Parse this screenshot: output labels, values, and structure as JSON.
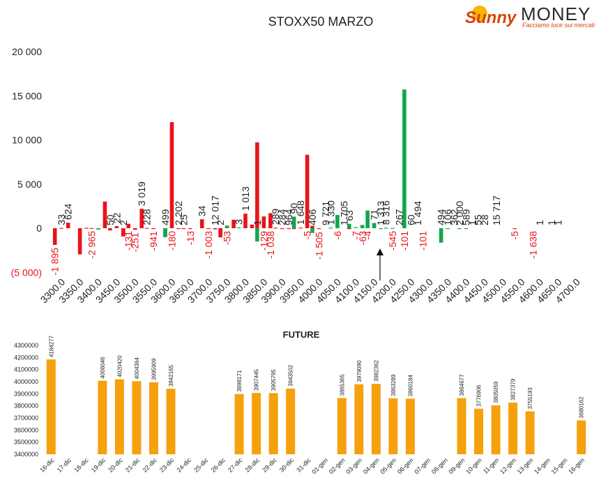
{
  "logo": {
    "word1": "Sunny",
    "word2": "MONEY",
    "tagline": "Facciamo luce sui mercati"
  },
  "colors": {
    "red": "#e8141b",
    "green": "#10a84e",
    "orange": "#f5a10e",
    "text": "#222222",
    "axis_neg": "#e8141b"
  },
  "chart_data": [
    {
      "type": "bar",
      "title": "STOXX50 MARZO",
      "ylim": [
        -5000,
        20000
      ],
      "yticks": [
        20000,
        15000,
        10000,
        5000,
        0,
        -5000
      ],
      "ytick_labels": [
        "20 000",
        "15 000",
        "10 000",
        "5 000",
        "0",
        "(5 000)"
      ],
      "categories": [
        "3300.0",
        "3350.0",
        "3400.0",
        "3450.0",
        "3500.0",
        "3550.0",
        "3600.0",
        "3650.0",
        "3700.0",
        "3750.0",
        "3800.0",
        "3850.0",
        "3900.0",
        "3950.0",
        "4000.0",
        "4050.0",
        "4100.0",
        "4150.0",
        "4200.0",
        "4250.0",
        "4300.0",
        "4350.0",
        "4400.0",
        "4450.0",
        "4500.0",
        "4550.0",
        "4600.0",
        "4650.0",
        "4700.0"
      ],
      "series": [
        {
          "color": "red",
          "values": [
            [
              -1895,
              33,
              624
            ],
            [
              null,
              -2965,
              50
            ],
            [
              22,
              -131,
              3019
            ],
            [
              -251,
              228,
              -941
            ],
            [
              499,
              -180,
              2202
            ],
            [
              25,
              -13,
              null
            ],
            [
              -1003,
              12017,
              2
            ],
            [
              -53,
              3,
              null
            ],
            [
              1013,
              1,
              -129
            ],
            [
              -1038,
              289,
              964
            ],
            [
              null,
              1648,
              406
            ],
            [
              9721,
              1330,
              1705
            ],
            [
              63,
              -7,
              -63
            ],
            [
              -4,
              71,
              8316
            ],
            [
              267,
              -101,
              null
            ],
            [
              null,
              null,
              null
            ],
            [
              -101,
              null,
              null
            ],
            [
              null,
              null,
              null
            ],
            [
              null,
              null,
              null
            ],
            [
              null,
              null,
              null
            ],
            [
              null,
              null,
              null
            ],
            [
              null,
              null,
              null
            ],
            [
              null,
              null,
              null
            ],
            [
              null,
              null,
              null
            ],
            [
              null,
              null,
              null
            ],
            [
              -5,
              null,
              null
            ],
            [
              null,
              null,
              null
            ],
            [
              null,
              null,
              null
            ],
            [
              null,
              null,
              null
            ]
          ]
        },
        {
          "color": "green",
          "values": [
            [
              null,
              null,
              null
            ],
            [
              null,
              null,
              null
            ],
            [
              null,
              -137,
              null
            ],
            [
              null,
              null,
              null
            ],
            [
              null,
              null,
              null
            ],
            [
              null,
              null,
              null
            ],
            [
              -1003,
              null,
              null
            ],
            [
              null,
              null,
              null
            ],
            [
              null,
              null,
              null
            ],
            [
              null,
              284,
              null
            ],
            [
              90,
              null,
              null
            ],
            [
              -1505,
              null,
              null
            ],
            [
              null,
              null,
              null
            ],
            [
              1313,
              null,
              null
            ],
            [
              -545,
              null,
              null
            ],
            [
              60,
              1494,
              null
            ],
            [
              494,
              106,
              362
            ],
            [
              2000,
              589,
              1
            ],
            [
              55,
              28,
              null
            ],
            [
              15717,
              null,
              null
            ],
            [
              null,
              null,
              null
            ],
            [
              -1638,
              1,
              null
            ],
            [
              1,
              1,
              null
            ],
            [
              null,
              null,
              null
            ],
            [
              null,
              null,
              null
            ],
            [
              null,
              null,
              null
            ],
            [
              null,
              null,
              null
            ],
            [
              null,
              null,
              null
            ],
            [
              null,
              null,
              null
            ]
          ]
        }
      ],
      "labels": [
        {
          "i": 0,
          "o": 0,
          "v": "-1 895",
          "c": "red"
        },
        {
          "i": 0,
          "o": 1,
          "v": "33",
          "c": "text"
        },
        {
          "i": 0,
          "o": 2,
          "v": "624",
          "c": "text"
        },
        {
          "i": 2,
          "o": 0,
          "v": "-2 965",
          "c": "red"
        },
        {
          "i": 3,
          "o": 0,
          "v": "50",
          "c": "text"
        },
        {
          "i": 3,
          "o": 1,
          "v": "22",
          "c": "text"
        },
        {
          "i": 3,
          "o": 2,
          "v": "2",
          "c": "text"
        },
        {
          "i": 4,
          "o": 0,
          "v": "-131",
          "c": "red"
        },
        {
          "i": 4,
          "o": 1,
          "v": "-251",
          "c": "red"
        },
        {
          "i": 4,
          "o": 2,
          "v": "3 019",
          "c": "text"
        },
        {
          "i": 5,
          "o": 0,
          "v": "228",
          "c": "text"
        },
        {
          "i": 5,
          "o": 1,
          "v": "-941",
          "c": "red"
        },
        {
          "i": 6,
          "o": 0,
          "v": "499",
          "c": "text"
        },
        {
          "i": 6,
          "o": 1,
          "v": "-180",
          "c": "red"
        },
        {
          "i": 6,
          "o": 2,
          "v": "2 202",
          "c": "text"
        },
        {
          "i": 7,
          "o": 0,
          "v": "25",
          "c": "text"
        },
        {
          "i": 7,
          "o": 1,
          "v": "-13",
          "c": "red"
        },
        {
          "i": 8,
          "o": 0,
          "v": "34",
          "c": "text"
        },
        {
          "i": 8,
          "o": 1,
          "v": "-1 003",
          "c": "red"
        },
        {
          "i": 8,
          "o": 2,
          "v": "12 017",
          "c": "text"
        },
        {
          "i": 9,
          "o": 0,
          "v": "2",
          "c": "text"
        },
        {
          "i": 9,
          "o": 1,
          "v": "-53",
          "c": "red"
        },
        {
          "i": 10,
          "o": 0,
          "v": "3",
          "c": "text"
        },
        {
          "i": 10,
          "o": 1,
          "v": "1 013",
          "c": "text"
        },
        {
          "i": 11,
          "o": 0,
          "v": "1",
          "c": "text"
        },
        {
          "i": 11,
          "o": 1,
          "v": "-129",
          "c": "red"
        },
        {
          "i": 11,
          "o": 2,
          "v": "-1 038",
          "c": "red"
        },
        {
          "i": 12,
          "o": 0,
          "v": "289",
          "c": "text"
        },
        {
          "i": 12,
          "o": 1,
          "v": "284",
          "c": "text"
        },
        {
          "i": 12,
          "o": 2,
          "v": "964",
          "c": "text"
        },
        {
          "i": 13,
          "o": 0,
          "v": "90",
          "c": "text"
        },
        {
          "i": 13,
          "o": 1,
          "v": "1 648",
          "c": "text"
        },
        {
          "i": 13,
          "o": 2,
          "v": "-5",
          "c": "red"
        },
        {
          "i": 14,
          "o": 0,
          "v": "406",
          "c": "text"
        },
        {
          "i": 14,
          "o": 1,
          "v": "-1 505",
          "c": "red"
        },
        {
          "i": 14,
          "o": 2,
          "v": "9 721",
          "c": "text"
        },
        {
          "i": 15,
          "o": 0,
          "v": "1 330",
          "c": "text"
        },
        {
          "i": 15,
          "o": 1,
          "v": "-6",
          "c": "red"
        },
        {
          "i": 15,
          "o": 2,
          "v": "1 705",
          "c": "text"
        },
        {
          "i": 16,
          "o": 0,
          "v": "63",
          "c": "text"
        },
        {
          "i": 16,
          "o": 1,
          "v": "-7",
          "c": "red"
        },
        {
          "i": 16,
          "o": 2,
          "v": "-63",
          "c": "red"
        },
        {
          "i": 17,
          "o": 0,
          "v": "-4",
          "c": "red"
        },
        {
          "i": 17,
          "o": 1,
          "v": "71",
          "c": "text"
        },
        {
          "i": 17,
          "o": 2,
          "v": "1 313",
          "c": "text"
        },
        {
          "i": 18,
          "o": 0,
          "v": "8 316",
          "c": "text"
        },
        {
          "i": 18,
          "o": 1,
          "v": "-545",
          "c": "red"
        },
        {
          "i": 18,
          "o": 2,
          "v": "267",
          "c": "text"
        },
        {
          "i": 19,
          "o": 0,
          "v": "-101",
          "c": "red"
        },
        {
          "i": 19,
          "o": 1,
          "v": "60",
          "c": "text"
        },
        {
          "i": 19,
          "o": 2,
          "v": "1 494",
          "c": "text"
        },
        {
          "i": 20,
          "o": 0,
          "v": "-101",
          "c": "red"
        },
        {
          "i": 21,
          "o": 0,
          "v": "494",
          "c": "text"
        },
        {
          "i": 21,
          "o": 1,
          "v": "106",
          "c": "text"
        },
        {
          "i": 21,
          "o": 2,
          "v": "362",
          "c": "text"
        },
        {
          "i": 22,
          "o": 0,
          "v": "2 000",
          "c": "text"
        },
        {
          "i": 22,
          "o": 1,
          "v": "589",
          "c": "text"
        },
        {
          "i": 22,
          "o": 2,
          "v": "1",
          "c": "text"
        },
        {
          "i": 23,
          "o": 0,
          "v": "55",
          "c": "text"
        },
        {
          "i": 23,
          "o": 1,
          "v": "28",
          "c": "text"
        },
        {
          "i": 24,
          "o": 0,
          "v": "15 717",
          "c": "text"
        },
        {
          "i": 25,
          "o": 0,
          "v": "-5",
          "c": "red"
        },
        {
          "i": 26,
          "o": 0,
          "v": "-1 638",
          "c": "red"
        },
        {
          "i": 26,
          "o": 1,
          "v": "1",
          "c": "text"
        },
        {
          "i": 27,
          "o": 0,
          "v": "1",
          "c": "text"
        },
        {
          "i": 27,
          "o": 1,
          "v": "1",
          "c": "text"
        }
      ]
    },
    {
      "type": "bar",
      "title": "FUTURE",
      "ylim": [
        3400000,
        4300000
      ],
      "yticks": [
        4300000,
        4200000,
        4100000,
        4000000,
        3900000,
        3800000,
        3700000,
        3600000,
        3500000,
        3400000
      ],
      "categories": [
        "16-dic",
        "17-dic",
        "18-dic",
        "19-dic",
        "20-dic",
        "21-dic",
        "22-dic",
        "23-dic",
        "24-dic",
        "25-dic",
        "26-dic",
        "27-dic",
        "28-dic",
        "29-dic",
        "30-dic",
        "31-dic",
        "01-gen",
        "02-gen",
        "03-gen",
        "04-gen",
        "05-gen",
        "06-gen",
        "07-gen",
        "08-gen",
        "09-gen",
        "10-gen",
        "11-gen",
        "12-gen",
        "13-gen",
        "14-gen",
        "15-gen",
        "16-gen"
      ],
      "values": [
        4184277,
        null,
        null,
        4008046,
        4020420,
        4004364,
        3995909,
        3942165,
        null,
        null,
        null,
        3898171,
        3907445,
        3905795,
        3943502,
        null,
        null,
        3865365,
        3979090,
        3982362,
        3863289,
        3860184,
        null,
        null,
        3864677,
        3776906,
        3805059,
        3827379,
        3755193,
        null,
        null,
        3680162
      ]
    }
  ]
}
